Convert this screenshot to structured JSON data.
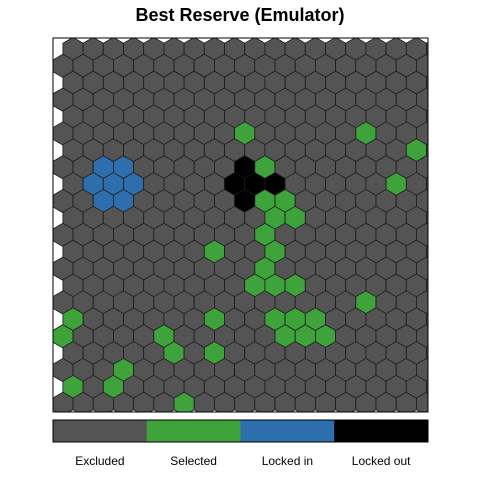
{
  "chart_data": {
    "type": "heatmap",
    "title": "Best Reserve (Emulator)",
    "grid": {
      "rows": 22,
      "cols": 19,
      "layout": "hex-odd-row-offset"
    },
    "colors": {
      "excluded": "#545454",
      "selected": "#3ea33a",
      "locked_in": "#2f6ead",
      "locked_out": "#000000",
      "outline": "#1a1a1a"
    },
    "legend": {
      "position": "bottom",
      "entries": [
        {
          "key": "excluded",
          "label": "Excluded"
        },
        {
          "key": "selected",
          "label": "Selected"
        },
        {
          "key": "locked_in",
          "label": "Locked in"
        },
        {
          "key": "locked_out",
          "label": "Locked out"
        }
      ]
    },
    "default_status": "excluded",
    "cells": [
      {
        "row": 5,
        "col": 9,
        "status": "selected"
      },
      {
        "row": 5,
        "col": 15,
        "status": "selected"
      },
      {
        "row": 6,
        "col": 17,
        "status": "selected"
      },
      {
        "row": 7,
        "col": 2,
        "status": "locked_in"
      },
      {
        "row": 7,
        "col": 3,
        "status": "locked_in"
      },
      {
        "row": 7,
        "col": 9,
        "status": "locked_out"
      },
      {
        "row": 7,
        "col": 10,
        "status": "selected"
      },
      {
        "row": 8,
        "col": 1,
        "status": "locked_in"
      },
      {
        "row": 8,
        "col": 2,
        "status": "locked_in"
      },
      {
        "row": 8,
        "col": 3,
        "status": "locked_in"
      },
      {
        "row": 8,
        "col": 8,
        "status": "locked_out"
      },
      {
        "row": 8,
        "col": 9,
        "status": "locked_out"
      },
      {
        "row": 8,
        "col": 10,
        "status": "locked_out"
      },
      {
        "row": 8,
        "col": 16,
        "status": "selected"
      },
      {
        "row": 9,
        "col": 2,
        "status": "locked_in"
      },
      {
        "row": 9,
        "col": 3,
        "status": "locked_in"
      },
      {
        "row": 9,
        "col": 9,
        "status": "locked_out"
      },
      {
        "row": 9,
        "col": 10,
        "status": "selected"
      },
      {
        "row": 9,
        "col": 11,
        "status": "selected"
      },
      {
        "row": 10,
        "col": 10,
        "status": "selected"
      },
      {
        "row": 10,
        "col": 11,
        "status": "selected"
      },
      {
        "row": 11,
        "col": 10,
        "status": "selected"
      },
      {
        "row": 12,
        "col": 7,
        "status": "selected"
      },
      {
        "row": 12,
        "col": 10,
        "status": "selected"
      },
      {
        "row": 13,
        "col": 10,
        "status": "selected"
      },
      {
        "row": 14,
        "col": 9,
        "status": "selected"
      },
      {
        "row": 14,
        "col": 10,
        "status": "selected"
      },
      {
        "row": 14,
        "col": 11,
        "status": "selected"
      },
      {
        "row": 15,
        "col": 15,
        "status": "selected"
      },
      {
        "row": 16,
        "col": 0,
        "status": "selected"
      },
      {
        "row": 16,
        "col": 7,
        "status": "selected"
      },
      {
        "row": 16,
        "col": 10,
        "status": "selected"
      },
      {
        "row": 16,
        "col": 11,
        "status": "selected"
      },
      {
        "row": 16,
        "col": 12,
        "status": "selected"
      },
      {
        "row": 17,
        "col": 0,
        "status": "selected"
      },
      {
        "row": 17,
        "col": 5,
        "status": "selected"
      },
      {
        "row": 17,
        "col": 11,
        "status": "selected"
      },
      {
        "row": 17,
        "col": 12,
        "status": "selected"
      },
      {
        "row": 17,
        "col": 13,
        "status": "selected"
      },
      {
        "row": 18,
        "col": 5,
        "status": "selected"
      },
      {
        "row": 18,
        "col": 7,
        "status": "selected"
      },
      {
        "row": 19,
        "col": 3,
        "status": "selected"
      },
      {
        "row": 20,
        "col": 0,
        "status": "selected"
      },
      {
        "row": 20,
        "col": 2,
        "status": "selected"
      },
      {
        "row": 21,
        "col": 6,
        "status": "selected"
      }
    ]
  }
}
